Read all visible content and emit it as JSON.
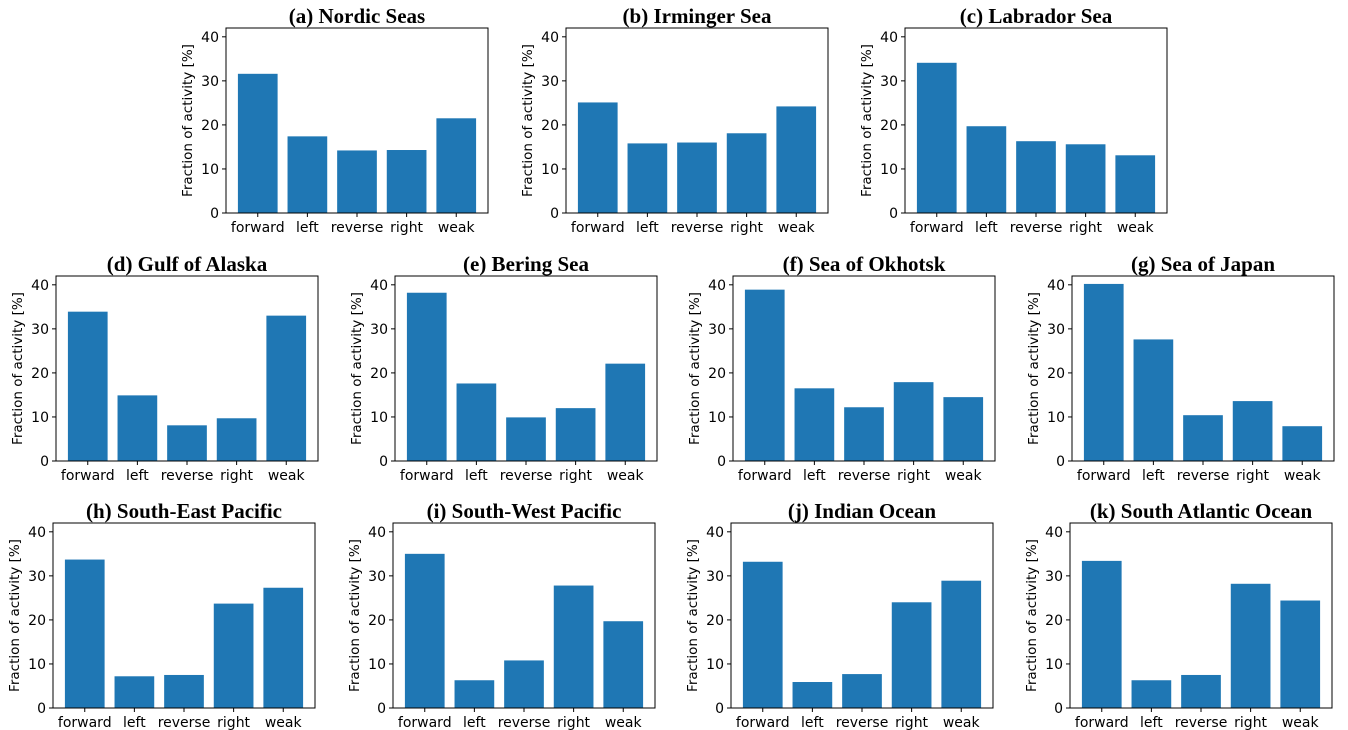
{
  "chart_data": [
    {
      "type": "bar",
      "title": "(a) Nordic Seas",
      "ylabel": "Fraction of activity [%]",
      "categories": [
        "forward",
        "left",
        "reverse",
        "right",
        "weak"
      ],
      "values": [
        31.6,
        17.4,
        14.2,
        14.3,
        21.5
      ],
      "color": "#1f77b4",
      "ylim": [
        0,
        42
      ],
      "yticks": [
        0,
        10,
        20,
        30,
        40
      ]
    },
    {
      "type": "bar",
      "title": "(b) Irminger Sea",
      "ylabel": "Fraction of activity [%]",
      "categories": [
        "forward",
        "left",
        "reverse",
        "right",
        "weak"
      ],
      "values": [
        25.1,
        15.8,
        16.0,
        18.1,
        24.2
      ],
      "color": "#1f77b4",
      "ylim": [
        0,
        42
      ],
      "yticks": [
        0,
        10,
        20,
        30,
        40
      ]
    },
    {
      "type": "bar",
      "title": "(c) Labrador Sea",
      "ylabel": "Fraction of activity [%]",
      "categories": [
        "forward",
        "left",
        "reverse",
        "right",
        "weak"
      ],
      "values": [
        34.1,
        19.7,
        16.3,
        15.6,
        13.1
      ],
      "color": "#1f77b4",
      "ylim": [
        0,
        42
      ],
      "yticks": [
        0,
        10,
        20,
        30,
        40
      ]
    },
    {
      "type": "bar",
      "title": "(d) Gulf of Alaska",
      "ylabel": "Fraction of activity [%]",
      "categories": [
        "forward",
        "left",
        "reverse",
        "right",
        "weak"
      ],
      "values": [
        33.9,
        14.9,
        8.1,
        9.7,
        33.0
      ],
      "color": "#1f77b4",
      "ylim": [
        0,
        42
      ],
      "yticks": [
        0,
        10,
        20,
        30,
        40
      ]
    },
    {
      "type": "bar",
      "title": "(e) Bering Sea",
      "ylabel": "Fraction of activity [%]",
      "categories": [
        "forward",
        "left",
        "reverse",
        "right",
        "weak"
      ],
      "values": [
        38.2,
        17.6,
        9.9,
        12.0,
        22.1
      ],
      "color": "#1f77b4",
      "ylim": [
        0,
        42
      ],
      "yticks": [
        0,
        10,
        20,
        30,
        40
      ]
    },
    {
      "type": "bar",
      "title": "(f) Sea of Okhotsk",
      "ylabel": "Fraction of activity [%]",
      "categories": [
        "forward",
        "left",
        "reverse",
        "right",
        "weak"
      ],
      "values": [
        38.9,
        16.5,
        12.2,
        17.9,
        14.5
      ],
      "color": "#1f77b4",
      "ylim": [
        0,
        42
      ],
      "yticks": [
        0,
        10,
        20,
        30,
        40
      ]
    },
    {
      "type": "bar",
      "title": "(g) Sea of Japan",
      "ylabel": "Fraction of activity [%]",
      "categories": [
        "forward",
        "left",
        "reverse",
        "right",
        "weak"
      ],
      "values": [
        40.2,
        27.6,
        10.4,
        13.6,
        7.9
      ],
      "color": "#1f77b4",
      "ylim": [
        0,
        42
      ],
      "yticks": [
        0,
        10,
        20,
        30,
        40
      ]
    },
    {
      "type": "bar",
      "title": "(h) South-East Pacific",
      "ylabel": "Fraction of activity [%]",
      "categories": [
        "forward",
        "left",
        "reverse",
        "right",
        "weak"
      ],
      "values": [
        33.7,
        7.2,
        7.5,
        23.7,
        27.3
      ],
      "color": "#1f77b4",
      "ylim": [
        0,
        42
      ],
      "yticks": [
        0,
        10,
        20,
        30,
        40
      ]
    },
    {
      "type": "bar",
      "title": "(i) South-West Pacific",
      "ylabel": "Fraction of activity [%]",
      "categories": [
        "forward",
        "left",
        "reverse",
        "right",
        "weak"
      ],
      "values": [
        35.0,
        6.3,
        10.8,
        27.8,
        19.7
      ],
      "color": "#1f77b4",
      "ylim": [
        0,
        42
      ],
      "yticks": [
        0,
        10,
        20,
        30,
        40
      ]
    },
    {
      "type": "bar",
      "title": "(j) Indian Ocean",
      "ylabel": "Fraction of activity [%]",
      "categories": [
        "forward",
        "left",
        "reverse",
        "right",
        "weak"
      ],
      "values": [
        33.2,
        5.9,
        7.7,
        24.0,
        28.9
      ],
      "color": "#1f77b4",
      "ylim": [
        0,
        42
      ],
      "yticks": [
        0,
        10,
        20,
        30,
        40
      ]
    },
    {
      "type": "bar",
      "title": "(k) South Atlantic Ocean",
      "ylabel": "Fraction of activity [%]",
      "categories": [
        "forward",
        "left",
        "reverse",
        "right",
        "weak"
      ],
      "values": [
        33.4,
        6.3,
        7.5,
        28.2,
        24.4
      ],
      "color": "#1f77b4",
      "ylim": [
        0,
        42
      ],
      "yticks": [
        0,
        10,
        20,
        30,
        40
      ]
    }
  ]
}
